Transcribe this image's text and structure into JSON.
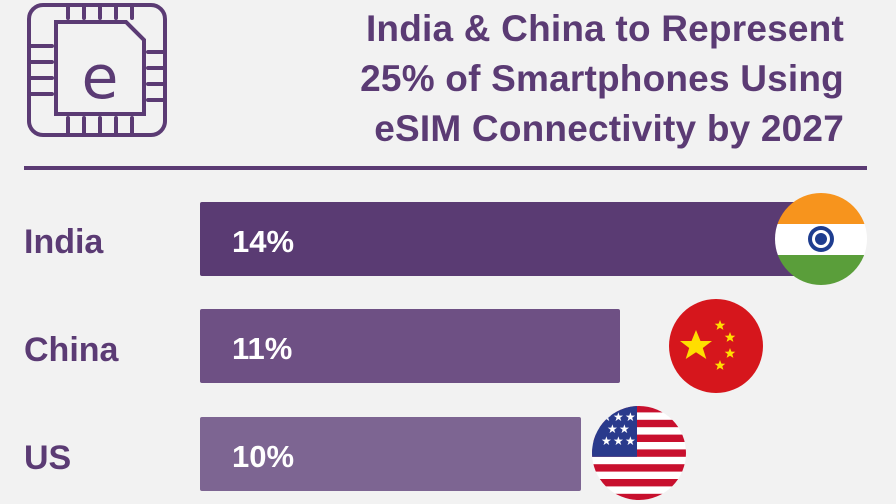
{
  "title_lines": [
    "India & China to Represent",
    "25% of Smartphones Using",
    "eSIM Connectivity by 2027"
  ],
  "logo": {
    "letter": "e",
    "icon": "esim-chip-icon"
  },
  "colors": {
    "brand_purple": "#5b3b74",
    "bar_india": "#5a3b73",
    "bar_china": "#6e5084",
    "bar_us": "#7d6592"
  },
  "chart_data": {
    "type": "bar",
    "orientation": "horizontal",
    "title": "India & China to Represent 25% of Smartphones Using eSIM Connectivity by 2027",
    "categories": [
      "India",
      "China",
      "US"
    ],
    "values": [
      14,
      11,
      10
    ],
    "value_labels": [
      "14%",
      "11%",
      "10%"
    ],
    "unit": "%",
    "flags": [
      "india-flag-icon",
      "china-flag-icon",
      "us-flag-icon"
    ],
    "grid": false,
    "legend": "none"
  }
}
